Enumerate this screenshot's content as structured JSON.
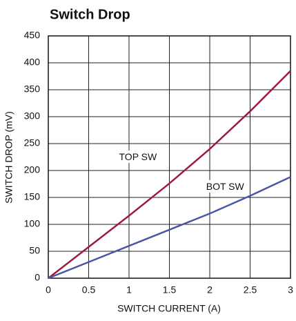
{
  "chart_data": {
    "type": "line",
    "title": "Switch Drop",
    "x_label": "SWITCH CURRENT (A)",
    "y_label": "SWITCH DROP (mV)",
    "x": [
      0,
      0.5,
      1,
      1.5,
      2,
      2.5,
      3
    ],
    "series": [
      {
        "name": "TOP SW",
        "color": "#9b1b3f",
        "values": [
          0,
          58,
          116,
          176,
          240,
          310,
          385
        ]
      },
      {
        "name": "BOT SW",
        "color": "#4a55a8",
        "values": [
          0,
          30,
          60,
          90,
          120,
          153,
          188
        ]
      }
    ],
    "annotations": [
      {
        "text": "TOP SW",
        "x": 1.11,
        "y": 224
      },
      {
        "text": "BOT SW",
        "x": 2.19,
        "y": 169
      }
    ],
    "xlim": [
      0,
      3
    ],
    "xticks": [
      0,
      0.5,
      1,
      1.5,
      2,
      2.5,
      3
    ],
    "ylim": [
      0,
      450
    ],
    "yticks": [
      0,
      50,
      100,
      150,
      200,
      250,
      300,
      350,
      400,
      450
    ],
    "grid": true
  }
}
